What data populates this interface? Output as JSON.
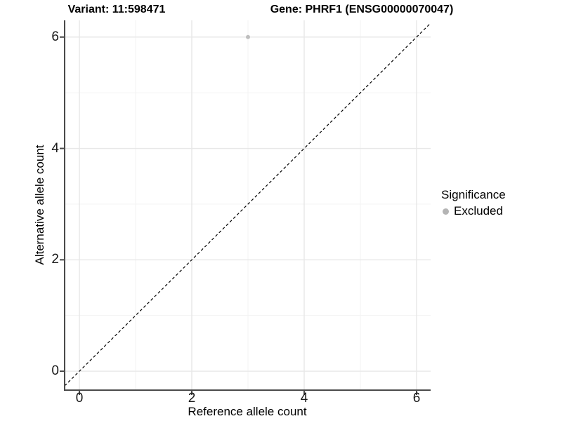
{
  "chart_data": {
    "type": "scatter",
    "title_variant": "Variant: 11:598471",
    "title_gene": "Gene: PHRF1 (ENSG00000070047)",
    "xlabel": "Reference allele count",
    "ylabel": "Alternative allele count",
    "xlim": [
      -0.2625,
      6.25
    ],
    "ylim": [
      -0.34,
      6.3
    ],
    "x_ticks": [
      0,
      2,
      4,
      6
    ],
    "y_ticks": [
      0,
      2,
      4,
      6
    ],
    "x_minor_ticks": [
      1,
      3,
      5
    ],
    "y_minor_ticks": [
      1,
      3,
      5
    ],
    "grid": true,
    "legend_position": "right",
    "points": [
      {
        "x": 3,
        "y": 6,
        "series": "Excluded",
        "color": "#bebebe",
        "radius": 3
      }
    ],
    "identity_line": {
      "slope": 1,
      "intercept": 0,
      "style": "dashed",
      "color": "#000000"
    },
    "legend": {
      "title": "Significance",
      "items": [
        {
          "label": "Excluded",
          "color": "#b4b4b4"
        }
      ]
    }
  },
  "colors": {
    "axis_line": "#4a4a4a",
    "grid_major": "#e7e7e7",
    "grid_minor": "#f2f2f2",
    "tick_mark": "#4a4a4a",
    "background": "#ffffff"
  }
}
